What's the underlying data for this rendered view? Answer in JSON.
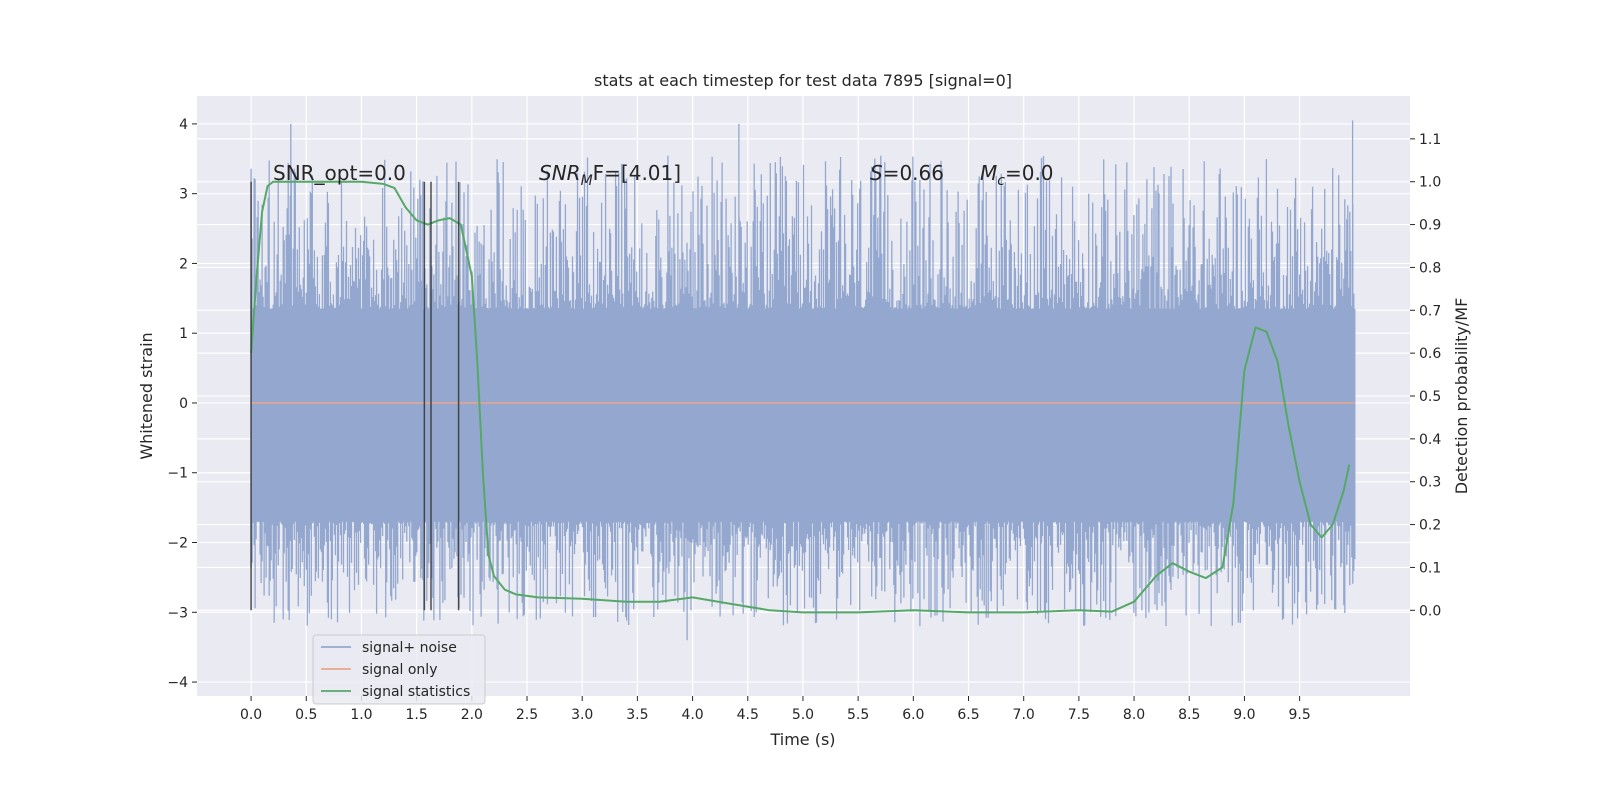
{
  "chart_data": {
    "type": "line",
    "title": "stats at each timestep for test data 7895 [signal=0]",
    "xlabel": "Time (s)",
    "ylabel_left": "Whitened strain",
    "ylabel_right": "Detection probability/MF",
    "xlim": [
      -0.49,
      10.5
    ],
    "ylim_left": [
      -4.2,
      4.4
    ],
    "ylim_right": [
      -0.2,
      1.2
    ],
    "x_ticks": [
      "0.0",
      "0.5",
      "1.0",
      "1.5",
      "2.0",
      "2.5",
      "3.0",
      "3.5",
      "4.0",
      "4.5",
      "5.0",
      "5.5",
      "6.0",
      "6.5",
      "7.0",
      "7.5",
      "8.0",
      "8.5",
      "9.0",
      "9.5"
    ],
    "y_left_ticks": [
      "4",
      "3",
      "2",
      "1",
      "0",
      "−1",
      "−2",
      "−3",
      "−4"
    ],
    "y_right_ticks": [
      "1.1",
      "1.0",
      "0.9",
      "0.8",
      "0.7",
      "0.6",
      "0.5",
      "0.4",
      "0.3",
      "0.2",
      "0.1",
      "0.0"
    ],
    "grid": true,
    "legend_position": "lower-left",
    "annotations": {
      "snr_opt": "SNR_opt=0.0",
      "snr_mf_prefix": "SNR",
      "snr_mf_sub": "M",
      "snr_mf_suffix": "F=[4.01]",
      "s_italic": "S",
      "s_value": "=0.66",
      "mc_italic": "M",
      "mc_sub": "c",
      "mc_value": "=0.0"
    },
    "vertical_markers_x": [
      0.0,
      1.57,
      1.63,
      1.88
    ],
    "series": [
      {
        "name": "signal+ noise",
        "color": "#94a8cf",
        "kind": "noise",
        "x_range": [
          0.0,
          10.0
        ],
        "typical_range": [
          -1.7,
          1.35
        ],
        "max": 4.05,
        "min": -3.4
      },
      {
        "name": "signal only",
        "color": "#e9a68c",
        "kind": "line",
        "x": [
          0.0,
          10.0
        ],
        "y": [
          0.0,
          0.0
        ]
      },
      {
        "name": "signal statistics",
        "color": "#55a868",
        "kind": "line",
        "axis": "right",
        "x": [
          0.0,
          0.05,
          0.1,
          0.15,
          0.2,
          0.3,
          0.5,
          0.8,
          1.0,
          1.2,
          1.3,
          1.4,
          1.5,
          1.6,
          1.7,
          1.8,
          1.9,
          2.0,
          2.05,
          2.1,
          2.15,
          2.2,
          2.3,
          2.4,
          2.6,
          3.0,
          3.4,
          3.7,
          4.0,
          4.3,
          4.7,
          5.0,
          5.5,
          6.0,
          6.5,
          7.0,
          7.5,
          7.8,
          8.0,
          8.2,
          8.35,
          8.5,
          8.65,
          8.8,
          8.9,
          9.0,
          9.1,
          9.2,
          9.3,
          9.4,
          9.5,
          9.6,
          9.7,
          9.8,
          9.9,
          9.95
        ],
        "y": [
          0.6,
          0.78,
          0.93,
          0.99,
          1.0,
          1.0,
          1.0,
          1.0,
          1.0,
          0.995,
          0.985,
          0.94,
          0.91,
          0.9,
          0.91,
          0.915,
          0.9,
          0.78,
          0.58,
          0.32,
          0.13,
          0.08,
          0.048,
          0.037,
          0.03,
          0.027,
          0.02,
          0.02,
          0.03,
          0.017,
          0.0,
          -0.005,
          -0.005,
          0.0,
          -0.005,
          -0.005,
          0.0,
          -0.003,
          0.02,
          0.08,
          0.11,
          0.09,
          0.075,
          0.1,
          0.25,
          0.56,
          0.66,
          0.65,
          0.58,
          0.43,
          0.3,
          0.2,
          0.17,
          0.2,
          0.28,
          0.34
        ]
      }
    ]
  }
}
